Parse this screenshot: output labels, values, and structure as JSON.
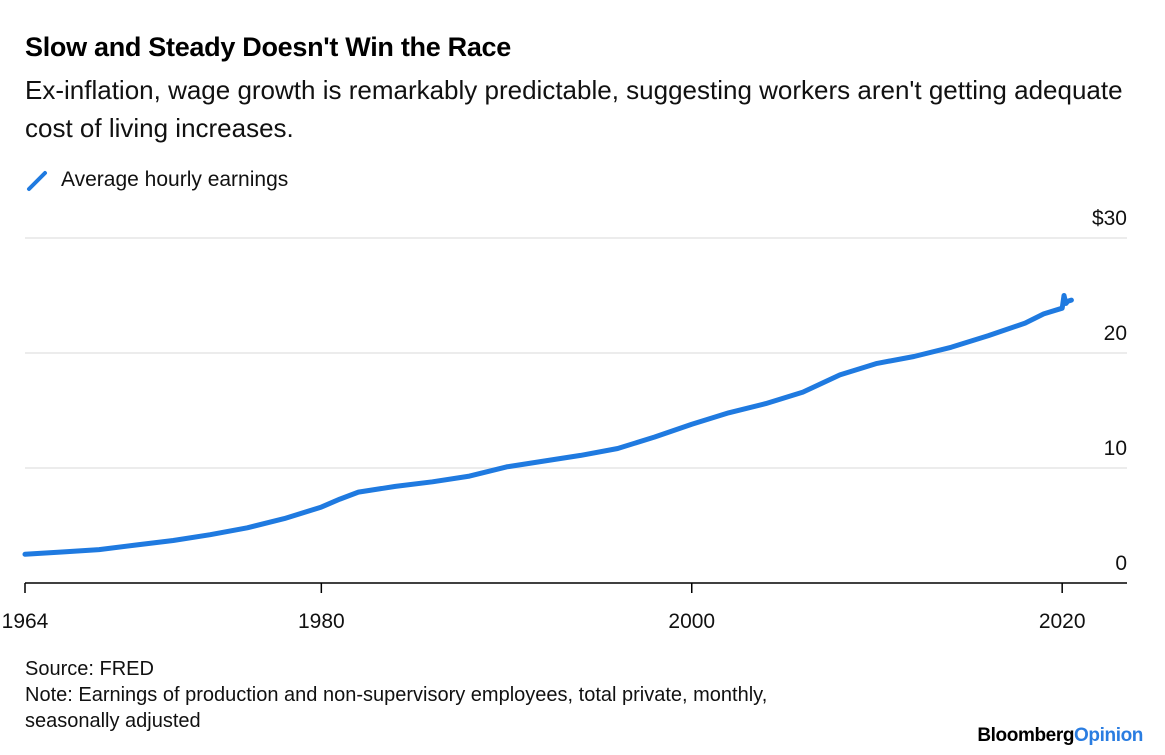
{
  "title": "Slow and Steady Doesn't Win the Race",
  "subtitle": "Ex-inflation, wage growth is remarkably predictable, suggesting workers aren't getting adequate cost of living increases.",
  "source": "Source: FRED",
  "note": "Note: Earnings of production and non-supervisory employees, total private, monthly, seasonally adjusted",
  "brand": {
    "part1": "Bloomberg",
    "part2": "Opinion"
  },
  "colors": {
    "series": "#1f7ae0",
    "grid": "#e6e6e6",
    "axis": "#000000"
  },
  "chart_data": {
    "type": "line",
    "title": "Slow and Steady Doesn't Win the Race",
    "xlabel": "",
    "ylabel": "",
    "xlim": [
      1964,
      2023.5
    ],
    "ylim": [
      0,
      30
    ],
    "y_ticks": [
      0,
      10,
      20,
      30
    ],
    "y_tick_labels": [
      "0",
      "10",
      "20",
      "$30"
    ],
    "x_ticks": [
      1964,
      1980,
      2000,
      2020
    ],
    "x_tick_labels": [
      "1964",
      "1980",
      "2000",
      "2020"
    ],
    "grid": "horizontal",
    "legend": "top-left",
    "series": [
      {
        "name": "Average hourly earnings",
        "x": [
          1964,
          1966,
          1968,
          1970,
          1972,
          1974,
          1976,
          1978,
          1980,
          1981,
          1982,
          1984,
          1986,
          1988,
          1990,
          1992,
          1994,
          1996,
          1998,
          2000,
          2002,
          2004,
          2006,
          2008,
          2010,
          2012,
          2014,
          2016,
          2018,
          2019,
          2020,
          2020.1,
          2020.2,
          2020.3,
          2020.5
        ],
        "y": [
          2.5,
          2.7,
          2.9,
          3.3,
          3.7,
          4.2,
          4.8,
          5.6,
          6.6,
          7.3,
          7.9,
          8.4,
          8.8,
          9.3,
          10.1,
          10.6,
          11.1,
          11.7,
          12.7,
          13.8,
          14.8,
          15.6,
          16.6,
          18.1,
          19.1,
          19.7,
          20.5,
          21.5,
          22.6,
          23.4,
          23.9,
          25.0,
          24.3,
          24.5,
          24.6
        ]
      }
    ]
  }
}
